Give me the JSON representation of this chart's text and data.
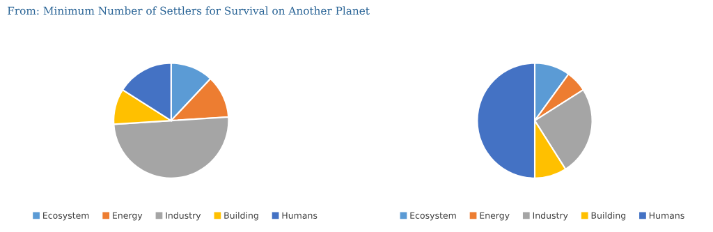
{
  "chart_data": [
    {
      "type": "pie",
      "title": "From: Minimum Number of Settlers for Survival on Another Planet",
      "categories": [
        "Ecosystem",
        "Energy",
        "Industry",
        "Building",
        "Humans"
      ],
      "values": [
        12,
        12,
        50,
        10,
        16
      ],
      "colors": [
        "#5b9bd5",
        "#ed7d31",
        "#a5a5a5",
        "#ffc000",
        "#4472c4"
      ],
      "legend": "bottom"
    },
    {
      "type": "pie",
      "categories": [
        "Ecosystem",
        "Energy",
        "Industry",
        "Building",
        "Humans"
      ],
      "values": [
        10,
        6,
        25,
        9,
        50
      ],
      "colors": [
        "#5b9bd5",
        "#ed7d31",
        "#a5a5a5",
        "#ffc000",
        "#4472c4"
      ],
      "legend": "bottom"
    }
  ]
}
